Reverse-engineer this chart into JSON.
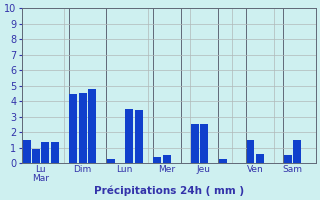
{
  "bar_heights": [
    1.5,
    0.9,
    1.35,
    1.35,
    4.45,
    4.5,
    4.8,
    0.3,
    3.5,
    3.45,
    0.4,
    0.55,
    2.5,
    2.55,
    0.25,
    1.5,
    0.6,
    0.55,
    1.5
  ],
  "bar_positions": [
    0,
    1,
    2,
    3,
    5,
    6,
    7,
    9,
    11,
    12,
    14,
    15,
    18,
    19,
    21,
    24,
    25,
    28,
    29
  ],
  "separator_x": [
    4.5,
    8.5,
    13.5,
    16.5,
    20.5,
    23.5,
    27.5
  ],
  "tick_positions": [
    1.5,
    6.0,
    10.5,
    15.0,
    19.0,
    24.5,
    28.5
  ],
  "tick_labels": [
    "Lu\nMar",
    "Dim",
    "Lun",
    "Mer",
    "Jeu",
    "Ven",
    "Sam"
  ],
  "xlabel": "Précipitations 24h ( mm )",
  "ylim": [
    0,
    10
  ],
  "yticks": [
    0,
    1,
    2,
    3,
    4,
    5,
    6,
    7,
    8,
    9,
    10
  ],
  "xlim": [
    -0.5,
    31
  ],
  "bar_color": "#1040cc",
  "grid_color": "#b0b8b8",
  "bg_color": "#cef0f0",
  "axis_label_color": "#3333aa",
  "tick_color": "#3333aa",
  "separator_color": "#606878"
}
